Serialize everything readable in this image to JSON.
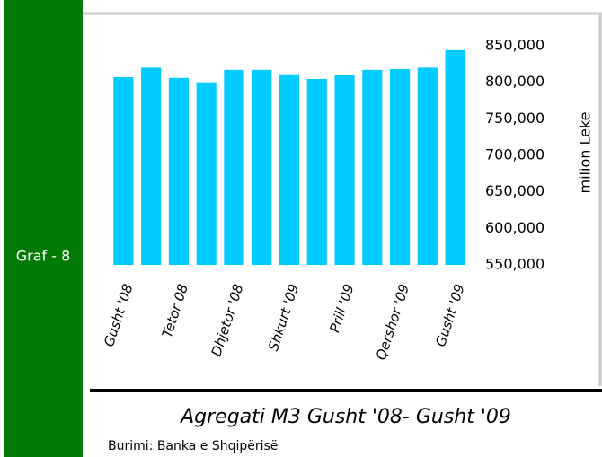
{
  "sidebar": {
    "label": "Graf - 8"
  },
  "source": "Burimi: Banka e Shqipërisë",
  "chart_data": {
    "type": "bar",
    "title": "Agregati M3 Gusht '08- Gusht '09",
    "y_label": "milion Leke",
    "categories": [
      "Gusht '08",
      null,
      "Tetor 08",
      null,
      "Dhjetor '08",
      null,
      "Shkurt '09",
      null,
      "Prill '09",
      null,
      "Qershor '09",
      null,
      "Gusht '09"
    ],
    "values": [
      807000,
      820000,
      806000,
      800000,
      817000,
      817000,
      811000,
      804500,
      809500,
      817000,
      818000,
      820000,
      844000
    ],
    "color": "#00ccff",
    "ylim": [
      550000,
      850000
    ],
    "yticks": [
      {
        "value": 550000,
        "label": "550,000"
      },
      {
        "value": 600000,
        "label": "600,000"
      },
      {
        "value": 650000,
        "label": "650,000"
      },
      {
        "value": 700000,
        "label": "700,000"
      },
      {
        "value": 750000,
        "label": "750,000"
      },
      {
        "value": 800000,
        "label": "800,000"
      },
      {
        "value": 850000,
        "label": "850,000"
      }
    ],
    "y_axis_side": "right",
    "grid": false
  }
}
